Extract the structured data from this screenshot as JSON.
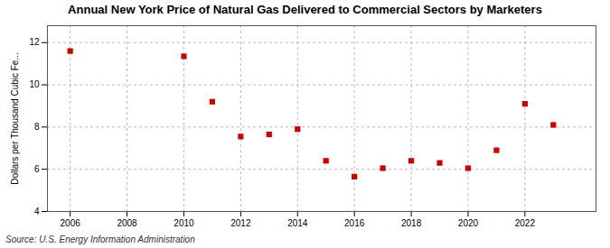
{
  "chart_data": {
    "type": "scatter",
    "title": "Annual New York Price of Natural Gas Delivered to Commercial Sectors by Marketers",
    "ylabel": "Dollars per Thousand Cubic Fe...",
    "annotations": [
      "Source: U.S. Energy Information Administration"
    ],
    "x": [
      2006,
      2010,
      2011,
      2012,
      2013,
      2014,
      2015,
      2016,
      2017,
      2018,
      2019,
      2020,
      2021,
      2022,
      2023
    ],
    "values": [
      11.6,
      11.35,
      9.2,
      7.55,
      7.65,
      7.9,
      6.4,
      5.65,
      6.05,
      6.4,
      6.3,
      6.05,
      6.9,
      9.1,
      8.1
    ],
    "color": "#cc0000",
    "marker": "square",
    "xlim": [
      2005.2,
      2024.5
    ],
    "ylim": [
      4,
      12.8
    ],
    "xticks": [
      2006,
      2008,
      2010,
      2012,
      2014,
      2016,
      2018,
      2020,
      2022
    ],
    "yticks": [
      4,
      6,
      8,
      10,
      12
    ],
    "grid": true
  }
}
